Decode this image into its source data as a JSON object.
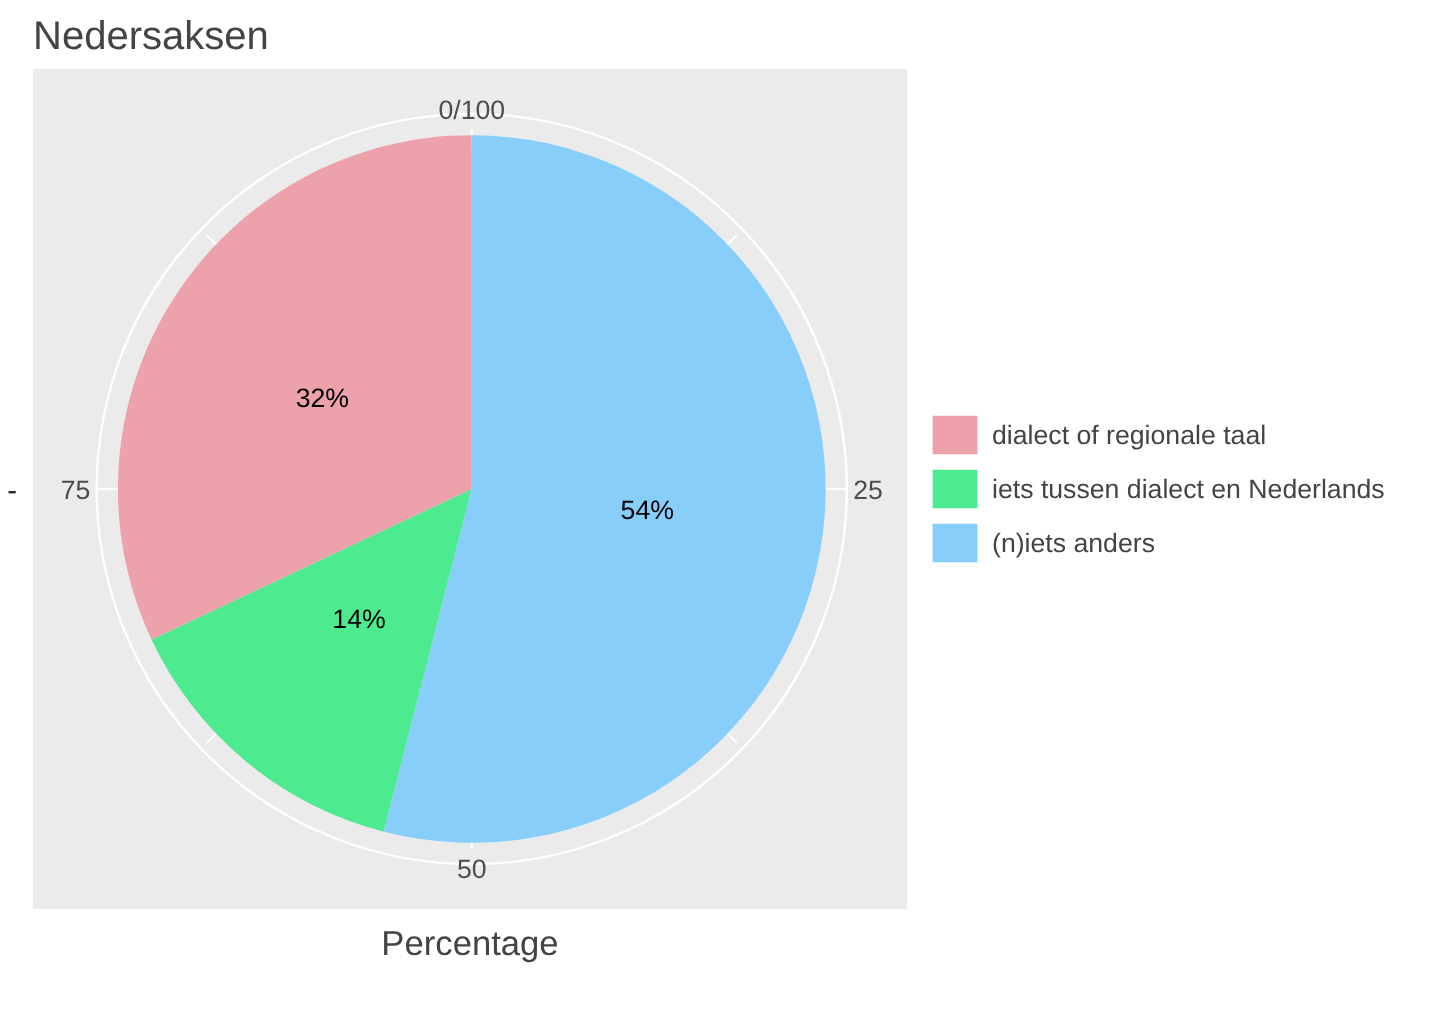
{
  "chart_data": {
    "type": "pie",
    "title": "Nedersaksen",
    "xlabel": "Percentage",
    "categories": [
      "dialect of regionale taal",
      "iets tussen dialect en Nederlands",
      "(n)iets anders"
    ],
    "values": [
      32,
      14,
      54
    ],
    "colors": [
      "#eda1aa",
      "#4eea8f",
      "#87cefa"
    ],
    "value_labels": [
      "32%",
      "14%",
      "54%"
    ],
    "annotations": [
      "0/100",
      "25",
      "50",
      "75",
      "-"
    ],
    "grid": true,
    "legend": "right"
  }
}
